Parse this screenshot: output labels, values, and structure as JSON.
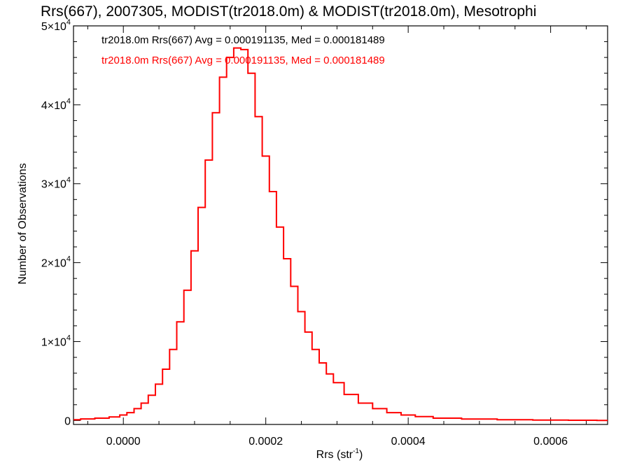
{
  "chart_data": {
    "type": "histogram",
    "title": "Rrs(667), 2007305, MODIST(tr2018.0m) & MODIST(tr2018.0m), Mesotrophi",
    "xlabel": {
      "base": "Rrs (str",
      "sup": "-1",
      "tail": ")"
    },
    "ylabel": "Number of Observations",
    "xlim": [
      -7e-05,
      0.00068
    ],
    "ylim": [
      -500,
      50000
    ],
    "x_ticks": [
      {
        "value": 0.0,
        "label": "0.0000"
      },
      {
        "value": 0.0002,
        "label": "0.0002"
      },
      {
        "value": 0.0004,
        "label": "0.0004"
      },
      {
        "value": 0.0006,
        "label": "0.0006"
      }
    ],
    "y_ticks": [
      {
        "value": 0,
        "mant": "0",
        "exp": ""
      },
      {
        "value": 10000,
        "mant": "1×10",
        "exp": "4"
      },
      {
        "value": 20000,
        "mant": "2×10",
        "exp": "4"
      },
      {
        "value": 30000,
        "mant": "3×10",
        "exp": "4"
      },
      {
        "value": 40000,
        "mant": "4×10",
        "exp": "4"
      },
      {
        "value": 50000,
        "mant": "5×10",
        "exp": "4"
      }
    ],
    "legend": [
      {
        "text": "tr2018.0m Rrs(667) Avg = 0.000191135, Med = 0.000181489",
        "color": "#000000"
      },
      {
        "text": "tr2018.0m Rrs(667) Avg = 0.000191135, Med = 0.000181489",
        "color": "#ff0000"
      }
    ],
    "series": [
      {
        "color": "#ff0000",
        "x": [
          -7e-05,
          -5e-05,
          -3e-05,
          -1e-05,
          0.0,
          1e-05,
          2e-05,
          3e-05,
          4e-05,
          5e-05,
          6e-05,
          7e-05,
          8e-05,
          9e-05,
          0.0001,
          0.00011,
          0.00012,
          0.00013,
          0.00014,
          0.00015,
          0.00016,
          0.00017,
          0.00018,
          0.00019,
          0.0002,
          0.00021,
          0.00022,
          0.00023,
          0.00024,
          0.00025,
          0.00026,
          0.00027,
          0.00028,
          0.00029,
          0.0003,
          0.00032,
          0.00034,
          0.00036,
          0.00038,
          0.0004,
          0.00042,
          0.00045,
          0.0005,
          0.00055,
          0.0006,
          0.00065,
          0.00068
        ],
        "y": [
          100,
          200,
          300,
          450,
          700,
          1000,
          1500,
          2200,
          3200,
          4600,
          6500,
          9000,
          12500,
          16500,
          21500,
          27000,
          33000,
          39000,
          43500,
          46000,
          47200,
          47000,
          44000,
          38500,
          33500,
          29000,
          24500,
          20500,
          17000,
          13800,
          11200,
          9000,
          7300,
          5900,
          4800,
          3300,
          2200,
          1500,
          1000,
          700,
          500,
          300,
          180,
          100,
          60,
          30,
          10
        ]
      }
    ]
  }
}
